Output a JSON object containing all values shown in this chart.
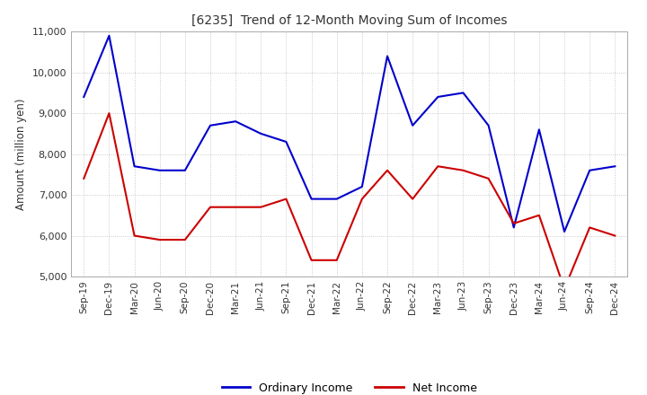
{
  "title": "[6235]  Trend of 12-Month Moving Sum of Incomes",
  "ylabel": "Amount (million yen)",
  "background_color": "#ffffff",
  "grid_color": "#aaaaaa",
  "xlabels": [
    "Sep-19",
    "Dec-19",
    "Mar-20",
    "Jun-20",
    "Sep-20",
    "Dec-20",
    "Mar-21",
    "Jun-21",
    "Sep-21",
    "Dec-21",
    "Mar-22",
    "Jun-22",
    "Sep-22",
    "Dec-22",
    "Mar-23",
    "Jun-23",
    "Sep-23",
    "Dec-23",
    "Mar-24",
    "Jun-24",
    "Sep-24",
    "Dec-24"
  ],
  "ordinary_income": [
    9400,
    10900,
    7700,
    7600,
    7600,
    8700,
    8800,
    8500,
    8300,
    6900,
    6900,
    7200,
    10400,
    8700,
    9400,
    9500,
    8700,
    6200,
    8600,
    6100,
    7600,
    7700
  ],
  "net_income": [
    7400,
    9000,
    6000,
    5900,
    5900,
    6700,
    6700,
    6700,
    6900,
    5400,
    5400,
    6900,
    7600,
    6900,
    7700,
    7600,
    7400,
    6300,
    6500,
    4700,
    6200,
    6000
  ],
  "ordinary_color": "#0000cc",
  "net_color": "#cc0000",
  "ylim": [
    5000,
    11000
  ],
  "yticks": [
    5000,
    6000,
    7000,
    8000,
    9000,
    10000,
    11000
  ]
}
